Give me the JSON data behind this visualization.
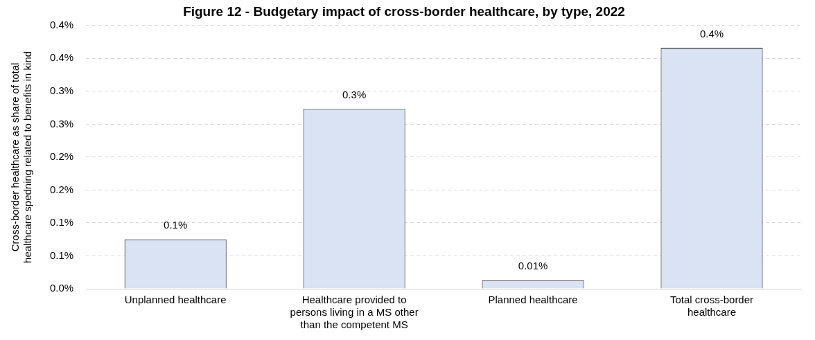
{
  "chart_data": {
    "type": "bar",
    "title": "Figure 12 - Budgetary impact of cross-border healthcare, by type, 2022",
    "ylabel": "Cross-border healthcare as share of total healthcare spedning related to benefits in kind",
    "categories": [
      [
        "Unplanned healthcare"
      ],
      [
        "Healthcare provided to",
        "persons living in a MS other",
        "than the competent MS"
      ],
      [
        "Planned healthcare"
      ],
      [
        "Total cross-border",
        "healthcare"
      ]
    ],
    "values": [
      0.075,
      0.273,
      0.013,
      0.366
    ],
    "value_labels": [
      "0.1%",
      "0.3%",
      "0.01%",
      "0.4%"
    ],
    "color": "#dae3f3",
    "ylim": [
      0,
      0.4
    ],
    "yticks": [
      {
        "value": 0,
        "label": "0.0%"
      },
      {
        "value": 0.05,
        "label": "0.1%"
      },
      {
        "value": 0.1,
        "label": "0.1%"
      },
      {
        "value": 0.15,
        "label": "0.2%"
      },
      {
        "value": 0.2,
        "label": "0.2%"
      },
      {
        "value": 0.25,
        "label": "0.3%"
      },
      {
        "value": 0.3,
        "label": "0.3%"
      },
      {
        "value": 0.35,
        "label": "0.4%"
      },
      {
        "value": 0.4,
        "label": "0.4%"
      }
    ],
    "grid": "y",
    "legend": false
  }
}
